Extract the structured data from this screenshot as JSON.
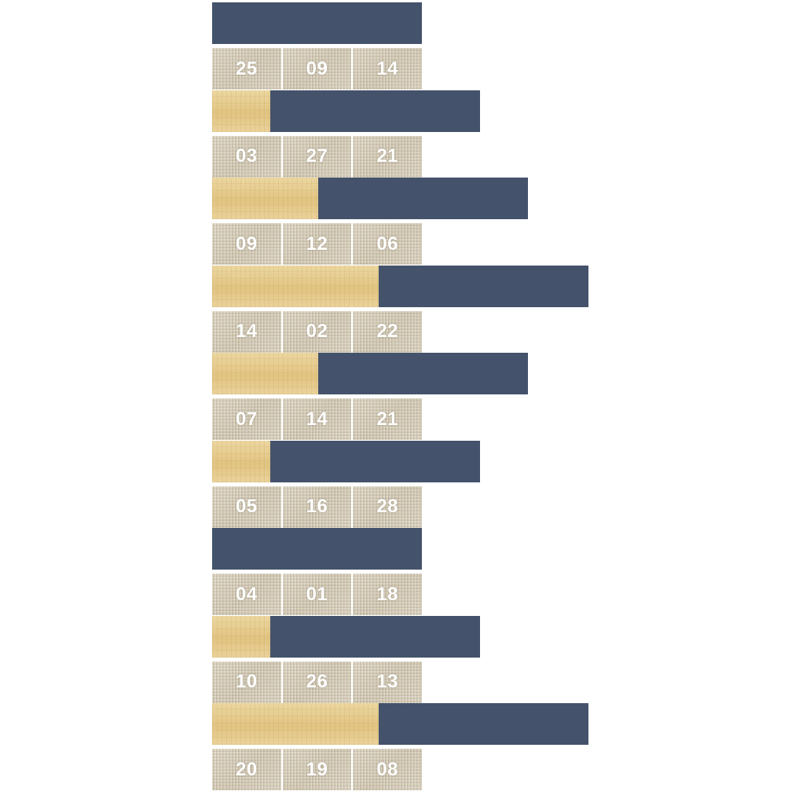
{
  "puzzle": {
    "bar_color": "#44536b",
    "offset_color": "#e7cf92",
    "tile_color": "#d6cdb9",
    "rows": [
      {
        "offset_units": 0,
        "digits": [
          "25",
          "09",
          "14"
        ]
      },
      {
        "offset_units": 1,
        "digits": [
          "03",
          "27",
          "21"
        ]
      },
      {
        "offset_units": 2,
        "digits": [
          "09",
          "12",
          "06"
        ]
      },
      {
        "offset_units": 3,
        "digits": [
          "14",
          "02",
          "22"
        ]
      },
      {
        "offset_units": 2,
        "digits": [
          "07",
          "14",
          "21"
        ]
      },
      {
        "offset_units": 1,
        "digits": [
          "05",
          "16",
          "28"
        ]
      },
      {
        "offset_units": 0,
        "digits": [
          "04",
          "01",
          "18"
        ]
      },
      {
        "offset_units": 1,
        "digits": [
          "10",
          "26",
          "13"
        ]
      },
      {
        "offset_units": 3,
        "digits": [
          "20",
          "19",
          "08"
        ]
      }
    ]
  }
}
